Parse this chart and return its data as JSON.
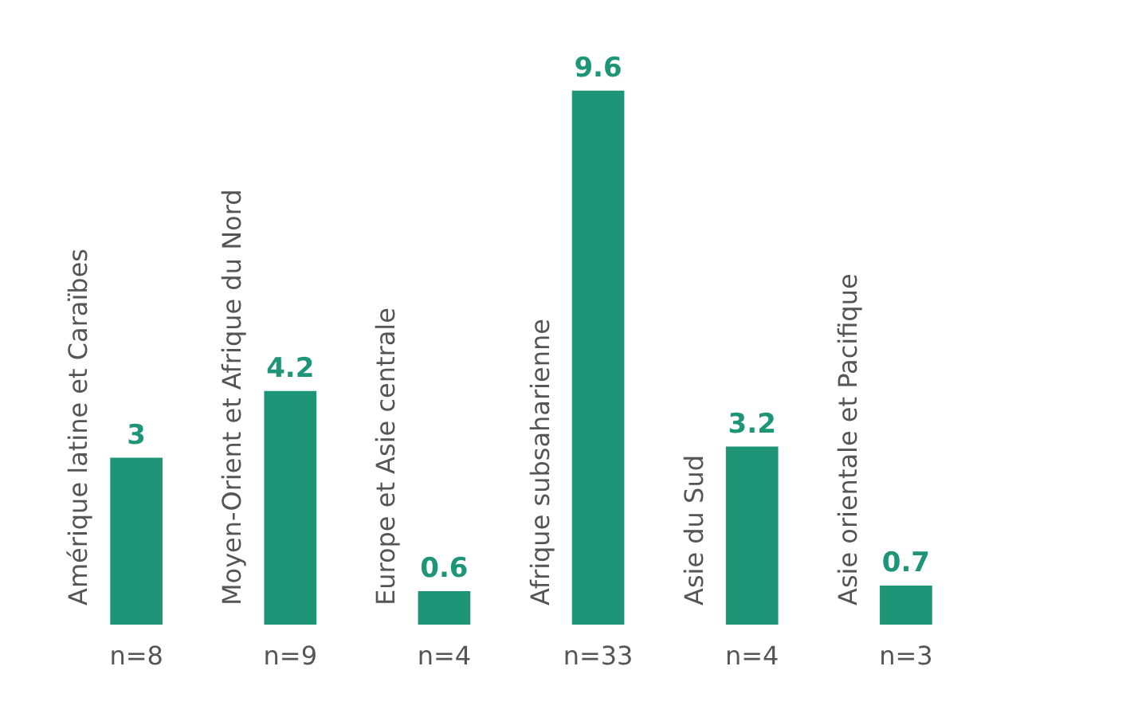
{
  "chart_data": {
    "type": "bar",
    "categories": [
      "Amérique latine et Caraïbes",
      "Moyen-Orient et Afrique du Nord",
      "Europe et Asie centrale",
      "Afrique subsaharienne",
      "Asie du Sud",
      "Asie orientale et Pacifique"
    ],
    "values": [
      3,
      4.2,
      0.6,
      9.6,
      3.2,
      0.7
    ],
    "color": "#1e9577",
    "data_labels": true,
    "annotations": [
      "n=8",
      "n=9",
      "n=4",
      "n=33",
      "n=4",
      "n=3"
    ]
  }
}
